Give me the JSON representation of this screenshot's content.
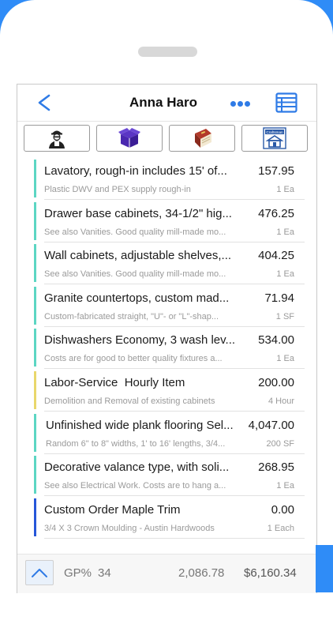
{
  "colors": {
    "accent": "#2f7be6",
    "bar_teal": "#5cd6c3",
    "bar_yellow": "#e9d76b",
    "bar_blue": "#2656d9",
    "outer_blue": "#2f8cf7"
  },
  "header": {
    "back_icon": "chevron-left-icon",
    "title": "Anna Haro",
    "more_icon": "ellipsis-icon",
    "list_icon": "list-table-icon"
  },
  "toolbar": {
    "buttons": [
      {
        "icon": "worker-icon"
      },
      {
        "icon": "box-icon"
      },
      {
        "icon": "book-icon"
      },
      {
        "icon": "craftsman-logo-icon",
        "text": "Craftsman"
      }
    ]
  },
  "items": [
    {
      "title": "Lavatory, rough-in includes 15' of...",
      "price": "157.95",
      "sub": "Plastic DWV and PEX supply rough-in",
      "qty": "1 Ea",
      "bar": "teal"
    },
    {
      "title": "Drawer base cabinets, 34-1/2\" hig...",
      "price": "476.25",
      "sub": "See also Vanities. Good quality mill-made mo...",
      "qty": "1 Ea",
      "bar": "teal"
    },
    {
      "title": "Wall cabinets, adjustable shelves,...",
      "price": "404.25",
      "sub": "See also Vanities. Good quality mill-made mo...",
      "qty": "1 Ea",
      "bar": "teal"
    },
    {
      "title": "Granite countertops, custom mad...",
      "price": "71.94",
      "sub": "Custom-fabricated straight, \"U\"- or \"L\"-shap...",
      "qty": "1 SF",
      "bar": "teal"
    },
    {
      "title": "Dishwashers Economy, 3 wash lev...",
      "price": "534.00",
      "sub": "Costs are for good to better quality fixtures a...",
      "qty": "1 Ea",
      "bar": "teal"
    },
    {
      "title": "Labor-Service  Hourly Item",
      "price": "200.00",
      "sub": "Demolition and Removal of existing cabinets",
      "qty": "4 Hour",
      "bar": "yellow"
    },
    {
      "title": "Unfinished wide plank flooring Sel...",
      "price": "4,047.00",
      "sub": "Random 6\" to 8\" widths, 1' to 16' lengths, 3/4...",
      "qty": "200 SF",
      "bar": "teal"
    },
    {
      "title": "Decorative valance type, with soli...",
      "price": "268.95",
      "sub": "See also Electrical Work. Costs are to hang a...",
      "qty": "1 Ea",
      "bar": "teal"
    },
    {
      "title": "Custom Order Maple Trim",
      "price": "0.00",
      "sub": "3/4 X 3 Crown Moulding - Austin Hardwoods",
      "qty": "1 Each",
      "bar": "blue"
    }
  ],
  "footer": {
    "up_icon": "chevron-up-icon",
    "gp_label": "GP%",
    "gp_value": "34",
    "cost": "2,086.78",
    "total": "$6,160.34"
  }
}
